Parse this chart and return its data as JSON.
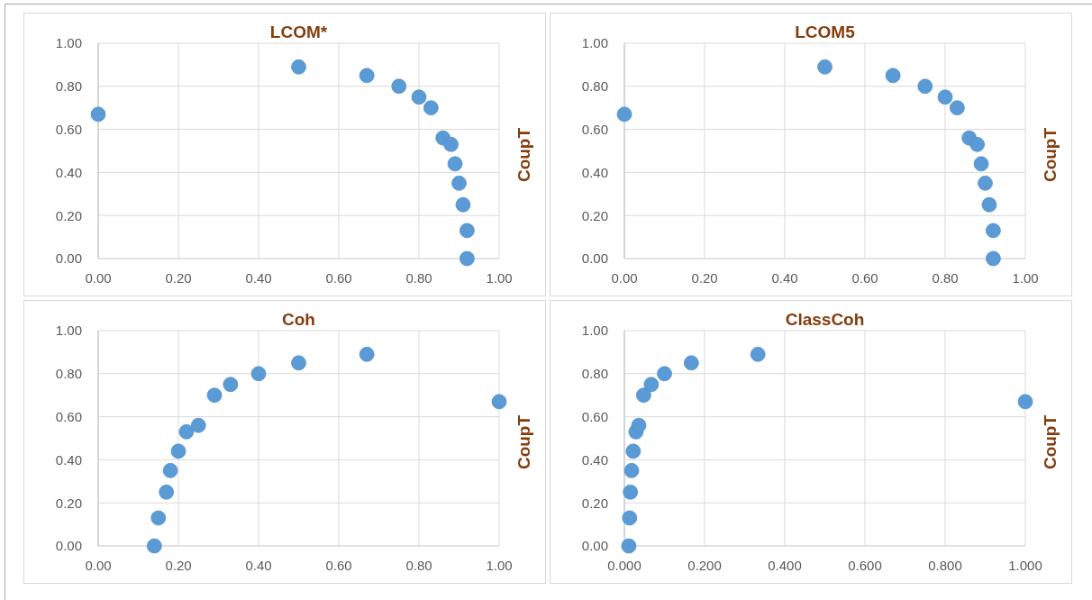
{
  "chart_data": [
    {
      "type": "scatter",
      "title": "LCOM*",
      "ylabel": "CoupT",
      "x": [
        0.0,
        0.5,
        0.67,
        0.75,
        0.8,
        0.83,
        0.86,
        0.88,
        0.89,
        0.9,
        0.91,
        0.92,
        0.92
      ],
      "values": [
        0.67,
        0.89,
        0.85,
        0.8,
        0.75,
        0.7,
        0.56,
        0.53,
        0.44,
        0.35,
        0.25,
        0.13,
        0.0
      ],
      "color": "#5b9bd5",
      "marker": "circle",
      "grid": true,
      "xlim": [
        0,
        1
      ],
      "xticks": [
        {
          "value": 0,
          "label": "0.00"
        },
        {
          "value": 0.2,
          "label": "0.20"
        },
        {
          "value": 0.4,
          "label": "0.40"
        },
        {
          "value": 0.6,
          "label": "0.60"
        },
        {
          "value": 0.8,
          "label": "0.80"
        },
        {
          "value": 1,
          "label": "1.00"
        }
      ],
      "ylim": [
        0,
        1
      ],
      "yticks": [
        {
          "value": 0,
          "label": "0.00"
        },
        {
          "value": 0.2,
          "label": "0.20"
        },
        {
          "value": 0.4,
          "label": "0.40"
        },
        {
          "value": 0.6,
          "label": "0.60"
        },
        {
          "value": 0.8,
          "label": "0.80"
        },
        {
          "value": 1,
          "label": "1.00"
        }
      ]
    },
    {
      "type": "scatter",
      "title": "LCOM5",
      "ylabel": "CoupT",
      "x": [
        0.0,
        0.5,
        0.67,
        0.75,
        0.8,
        0.83,
        0.86,
        0.88,
        0.89,
        0.9,
        0.91,
        0.92,
        0.92
      ],
      "values": [
        0.67,
        0.89,
        0.85,
        0.8,
        0.75,
        0.7,
        0.56,
        0.53,
        0.44,
        0.35,
        0.25,
        0.13,
        0.0
      ],
      "color": "#5b9bd5",
      "marker": "circle",
      "grid": true,
      "xlim": [
        0,
        1
      ],
      "xticks": [
        {
          "value": 0,
          "label": "0.00"
        },
        {
          "value": 0.2,
          "label": "0.20"
        },
        {
          "value": 0.4,
          "label": "0.40"
        },
        {
          "value": 0.6,
          "label": "0.60"
        },
        {
          "value": 0.8,
          "label": "0.80"
        },
        {
          "value": 1,
          "label": "1.00"
        }
      ],
      "ylim": [
        0,
        1
      ],
      "yticks": [
        {
          "value": 0,
          "label": "0.00"
        },
        {
          "value": 0.2,
          "label": "0.20"
        },
        {
          "value": 0.4,
          "label": "0.40"
        },
        {
          "value": 0.6,
          "label": "0.60"
        },
        {
          "value": 0.8,
          "label": "0.80"
        },
        {
          "value": 1,
          "label": "1.00"
        }
      ]
    },
    {
      "type": "scatter",
      "title": "Coh",
      "ylabel": "CoupT",
      "x": [
        0.14,
        0.15,
        0.17,
        0.18,
        0.2,
        0.22,
        0.25,
        0.29,
        0.33,
        0.4,
        0.5,
        0.67,
        1.0
      ],
      "values": [
        0.0,
        0.13,
        0.25,
        0.35,
        0.44,
        0.53,
        0.56,
        0.7,
        0.75,
        0.8,
        0.85,
        0.89,
        0.67
      ],
      "color": "#5b9bd5",
      "marker": "circle",
      "grid": true,
      "xlim": [
        0,
        1
      ],
      "xticks": [
        {
          "value": 0,
          "label": "0.00"
        },
        {
          "value": 0.2,
          "label": "0.20"
        },
        {
          "value": 0.4,
          "label": "0.40"
        },
        {
          "value": 0.6,
          "label": "0.60"
        },
        {
          "value": 0.8,
          "label": "0.80"
        },
        {
          "value": 1,
          "label": "1.00"
        }
      ],
      "ylim": [
        0,
        1
      ],
      "yticks": [
        {
          "value": 0,
          "label": "0.00"
        },
        {
          "value": 0.2,
          "label": "0.20"
        },
        {
          "value": 0.4,
          "label": "0.40"
        },
        {
          "value": 0.6,
          "label": "0.60"
        },
        {
          "value": 0.8,
          "label": "0.80"
        },
        {
          "value": 1,
          "label": "1.00"
        }
      ]
    },
    {
      "type": "scatter",
      "title": "ClassCoh",
      "ylabel": "CoupT",
      "x": [
        0.011,
        0.013,
        0.015,
        0.018,
        0.022,
        0.029,
        0.036,
        0.048,
        0.067,
        0.1,
        0.167,
        0.333,
        1.0
      ],
      "values": [
        0.0,
        0.13,
        0.25,
        0.35,
        0.44,
        0.53,
        0.56,
        0.7,
        0.75,
        0.8,
        0.85,
        0.89,
        0.67
      ],
      "color": "#5b9bd5",
      "marker": "circle",
      "grid": true,
      "xlim": [
        0,
        1
      ],
      "xticks": [
        {
          "value": 0,
          "label": "0.000"
        },
        {
          "value": 0.2,
          "label": "0.200"
        },
        {
          "value": 0.4,
          "label": "0.400"
        },
        {
          "value": 0.6,
          "label": "0.600"
        },
        {
          "value": 0.8,
          "label": "0.800"
        },
        {
          "value": 1,
          "label": "1.000"
        }
      ],
      "ylim": [
        0,
        1
      ],
      "yticks": [
        {
          "value": 0,
          "label": "0.00"
        },
        {
          "value": 0.2,
          "label": "0.20"
        },
        {
          "value": 0.4,
          "label": "0.40"
        },
        {
          "value": 0.6,
          "label": "0.60"
        },
        {
          "value": 0.8,
          "label": "0.80"
        },
        {
          "value": 1,
          "label": "1.00"
        }
      ]
    }
  ]
}
